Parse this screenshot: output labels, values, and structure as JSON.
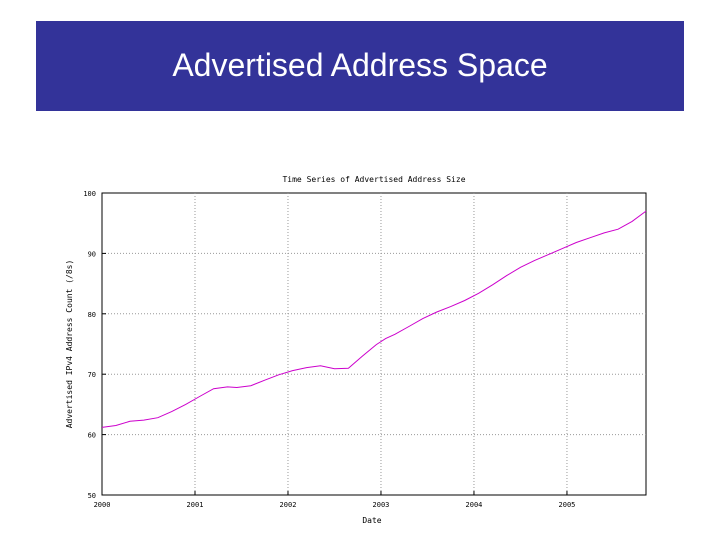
{
  "slide": {
    "title": "Advertised Address Space",
    "title_bar_color": "#333399"
  },
  "chart_data": {
    "type": "line",
    "title": "Time Series of Advertised Address Size",
    "xlabel": "Date",
    "ylabel": "Advertised IPv4 Address Count (/8s)",
    "xlim": [
      2000,
      2005.85
    ],
    "ylim": [
      50,
      100
    ],
    "x_tick_labels": [
      "2000",
      "2001",
      "2002",
      "2003",
      "2004",
      "2005"
    ],
    "y_ticks": [
      50,
      60,
      70,
      80,
      90,
      100
    ],
    "y_tick_labels": [
      "50",
      "60",
      "70",
      "80",
      "90",
      "100"
    ],
    "grid": true,
    "line_color": "#cc00cc",
    "series": [
      {
        "x": [
          2000.0,
          2000.15,
          2000.3,
          2000.45,
          2000.6,
          2000.75,
          2000.9,
          2001.05,
          2001.2,
          2001.35,
          2001.45,
          2001.6,
          2001.75,
          2001.9,
          2002.05,
          2002.2,
          2002.35,
          2002.5,
          2002.65,
          2002.8,
          2002.95,
          2003.05,
          2003.15,
          2003.3,
          2003.45,
          2003.6,
          2003.75,
          2003.9,
          2004.05,
          2004.2,
          2004.35,
          2004.5,
          2004.65,
          2004.8,
          2004.95,
          2005.1,
          2005.25,
          2005.4,
          2005.55,
          2005.7,
          2005.85
        ],
        "y": [
          61.2,
          61.5,
          62.2,
          62.4,
          62.8,
          63.8,
          65.0,
          66.3,
          67.6,
          67.9,
          67.8,
          68.1,
          69.0,
          69.9,
          70.6,
          71.1,
          71.4,
          70.9,
          71.0,
          73.0,
          74.9,
          75.9,
          76.6,
          77.9,
          79.2,
          80.3,
          81.2,
          82.2,
          83.4,
          84.8,
          86.3,
          87.7,
          88.8,
          89.8,
          90.8,
          91.8,
          92.6,
          93.4,
          94.0,
          95.3,
          97.0
        ]
      }
    ]
  }
}
